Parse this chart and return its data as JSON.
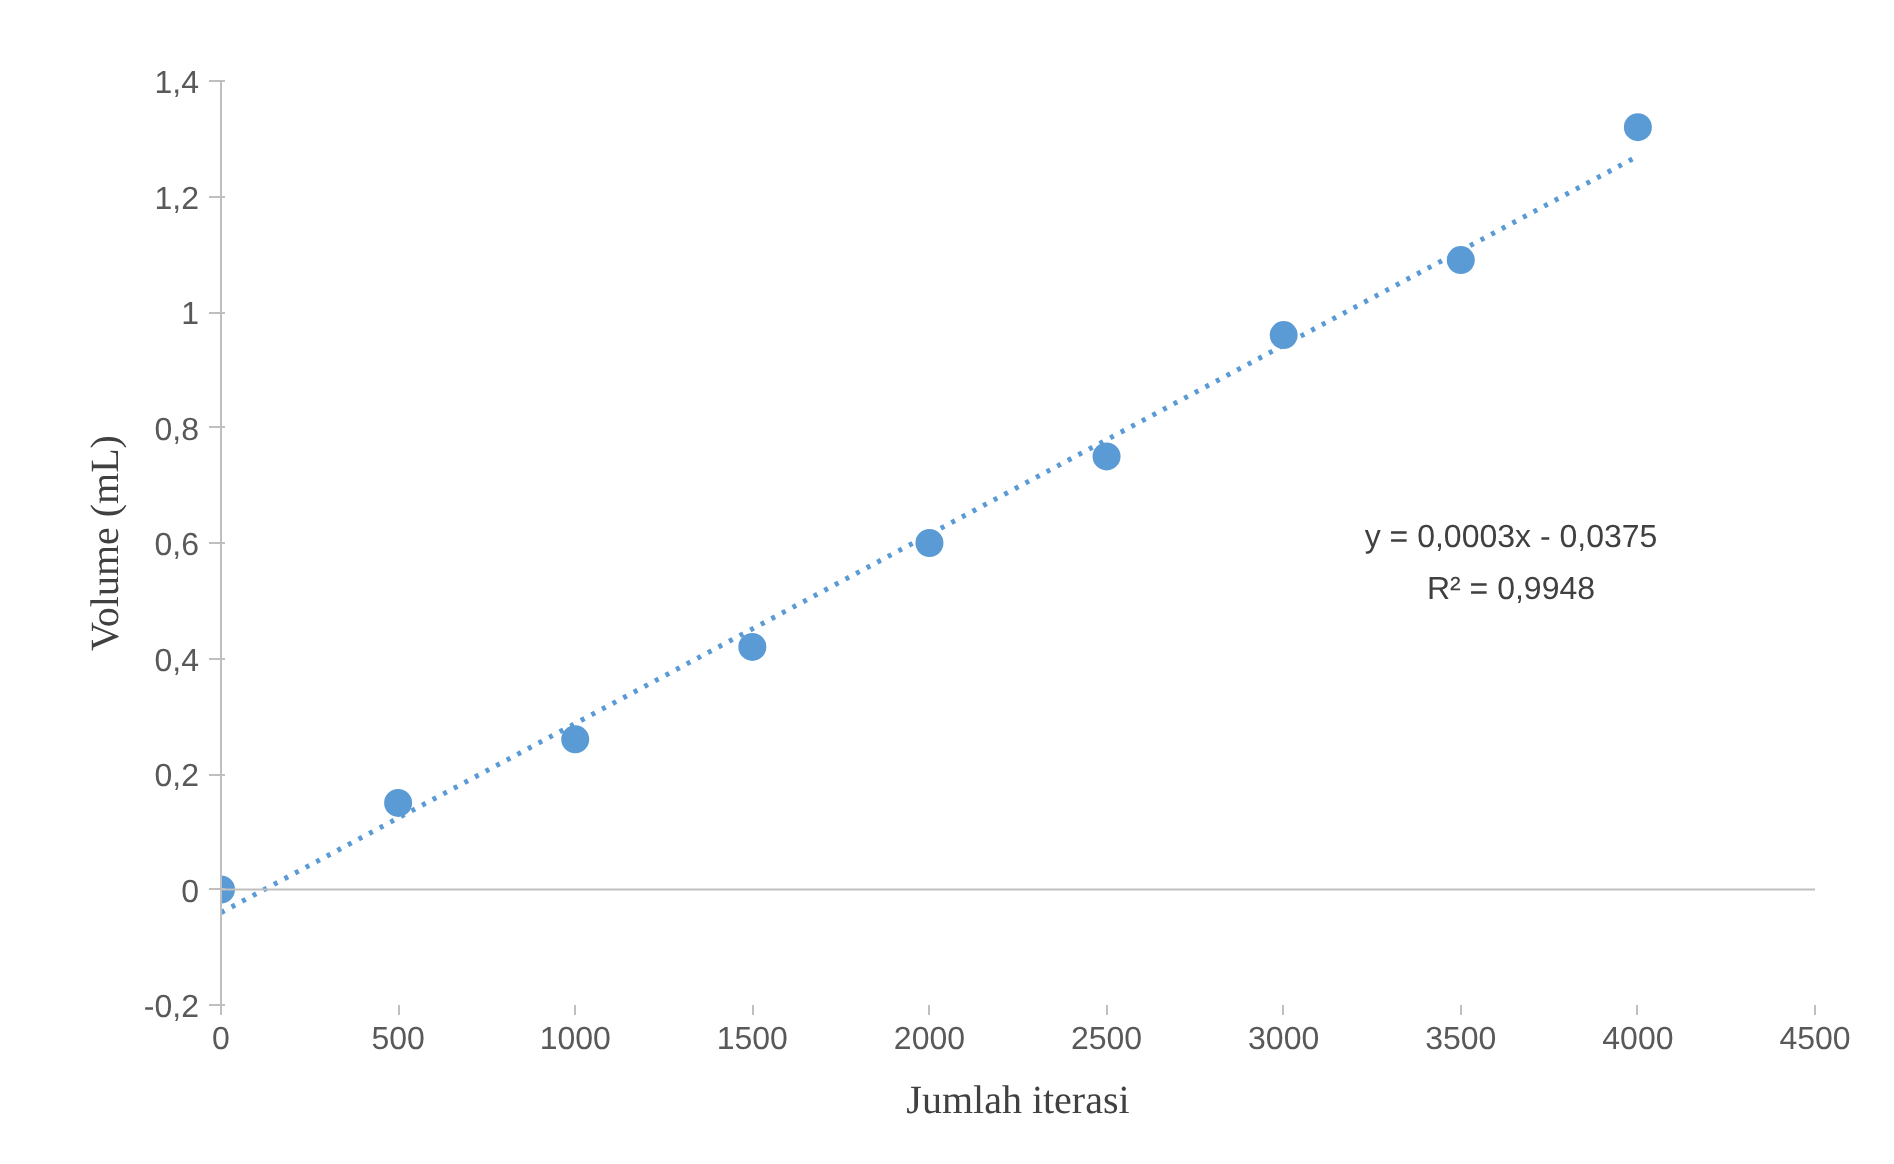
{
  "chart_data": {
    "type": "scatter",
    "xlabel": "Jumlah iterasi",
    "ylabel": "Volume (mL)",
    "series": [
      {
        "type": "scatter",
        "color": "#5b9bd5",
        "x": [
          0,
          500,
          1000,
          1500,
          2000,
          2500,
          3000,
          3500,
          4000
        ],
        "values": [
          0,
          0.15,
          0.26,
          0.42,
          0.6,
          0.75,
          0.96,
          1.09,
          1.32
        ],
        "marker": "circle"
      },
      {
        "type": "line",
        "color": "#5b9bd5",
        "x": [
          0,
          4000
        ],
        "values": [
          -0.04,
          1.27
        ],
        "line_style": "dotted"
      }
    ],
    "xlim": [
      0,
      4500
    ],
    "xticks": [
      0,
      500,
      1000,
      1500,
      2000,
      2500,
      3000,
      3500,
      4000,
      4500
    ],
    "ylim": [
      -0.2,
      1.4
    ],
    "yticks": [
      {
        "value": -0.2,
        "label": "-0,2"
      },
      0,
      {
        "value": 0.2,
        "label": "0,2"
      },
      {
        "value": 0.4,
        "label": "0,4"
      },
      {
        "value": 0.6,
        "label": "0,6"
      },
      {
        "value": 0.8,
        "label": "0,8"
      },
      1,
      {
        "value": 1.2,
        "label": "1,2"
      },
      {
        "value": 1.4,
        "label": "1,4"
      }
    ],
    "annotations": [
      "y = 0,0003x - 0,0375",
      "R² = 0,9948"
    ],
    "ref_lines": [
      {
        "axis": "y",
        "value": 0,
        "color": "#bfbfbf"
      }
    ]
  }
}
